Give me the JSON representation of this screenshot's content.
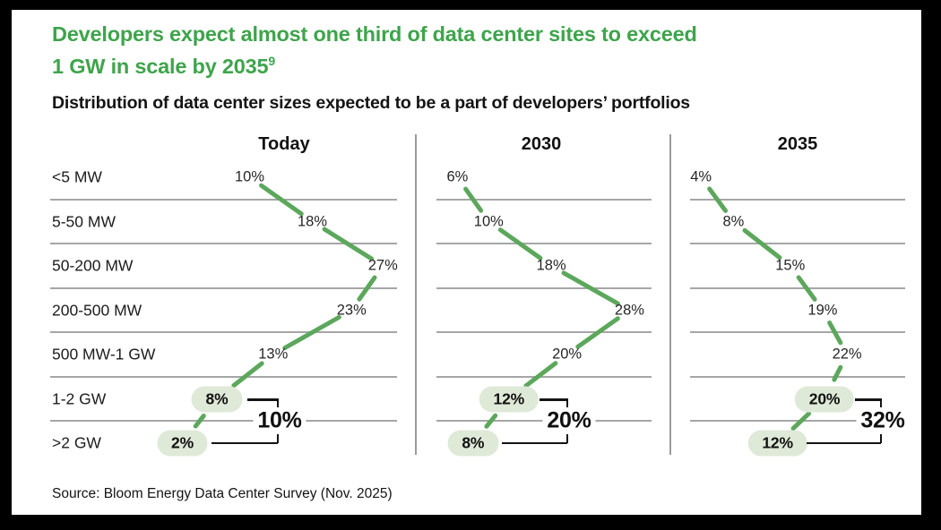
{
  "page": {
    "title_lines": [
      "Developers expect almost one third of data center sites to exceed",
      "1 GW in scale by 2035"
    ],
    "title_superscript": "9",
    "subtitle": "Distribution of data center sizes expected to be a part of developers’ portfolios",
    "source": "Source: Bloom Energy Data Center Survey (Nov. 2025)"
  },
  "colors": {
    "title_green": "#3EA44B",
    "line_green": "#5CA75C",
    "pill_bg": "#DFE9D7",
    "gridline": "#A6A6A6",
    "divider": "#9B9B9B",
    "bracket": "#141414",
    "text_dark": "#141414"
  },
  "chart_data": {
    "type": "line",
    "title": "Distribution of data center sizes expected to be a part of developers’ portfolios",
    "categories": [
      "<5 MW",
      "5-50 MW",
      "50-200 MW",
      "200-500 MW",
      "500 MW-1 GW",
      "1-2 GW",
      ">2 GW"
    ],
    "unit": "%",
    "columns": [
      "Today",
      "2030",
      "2035"
    ],
    "series": [
      {
        "name": "Today",
        "values": [
          10,
          18,
          27,
          23,
          13,
          8,
          2
        ],
        "gw_plus_total": 10
      },
      {
        "name": "2030",
        "values": [
          6,
          10,
          18,
          28,
          20,
          12,
          8
        ],
        "gw_plus_total": 20
      },
      {
        "name": "2035",
        "values": [
          4,
          8,
          15,
          19,
          22,
          20,
          12
        ],
        "gw_plus_total": 32
      }
    ],
    "highlighted_categories": [
      "1-2 GW",
      ">2 GW"
    ],
    "legend": "none",
    "grid": "horizontal lines between category rows; vertical dividers between time columns"
  }
}
